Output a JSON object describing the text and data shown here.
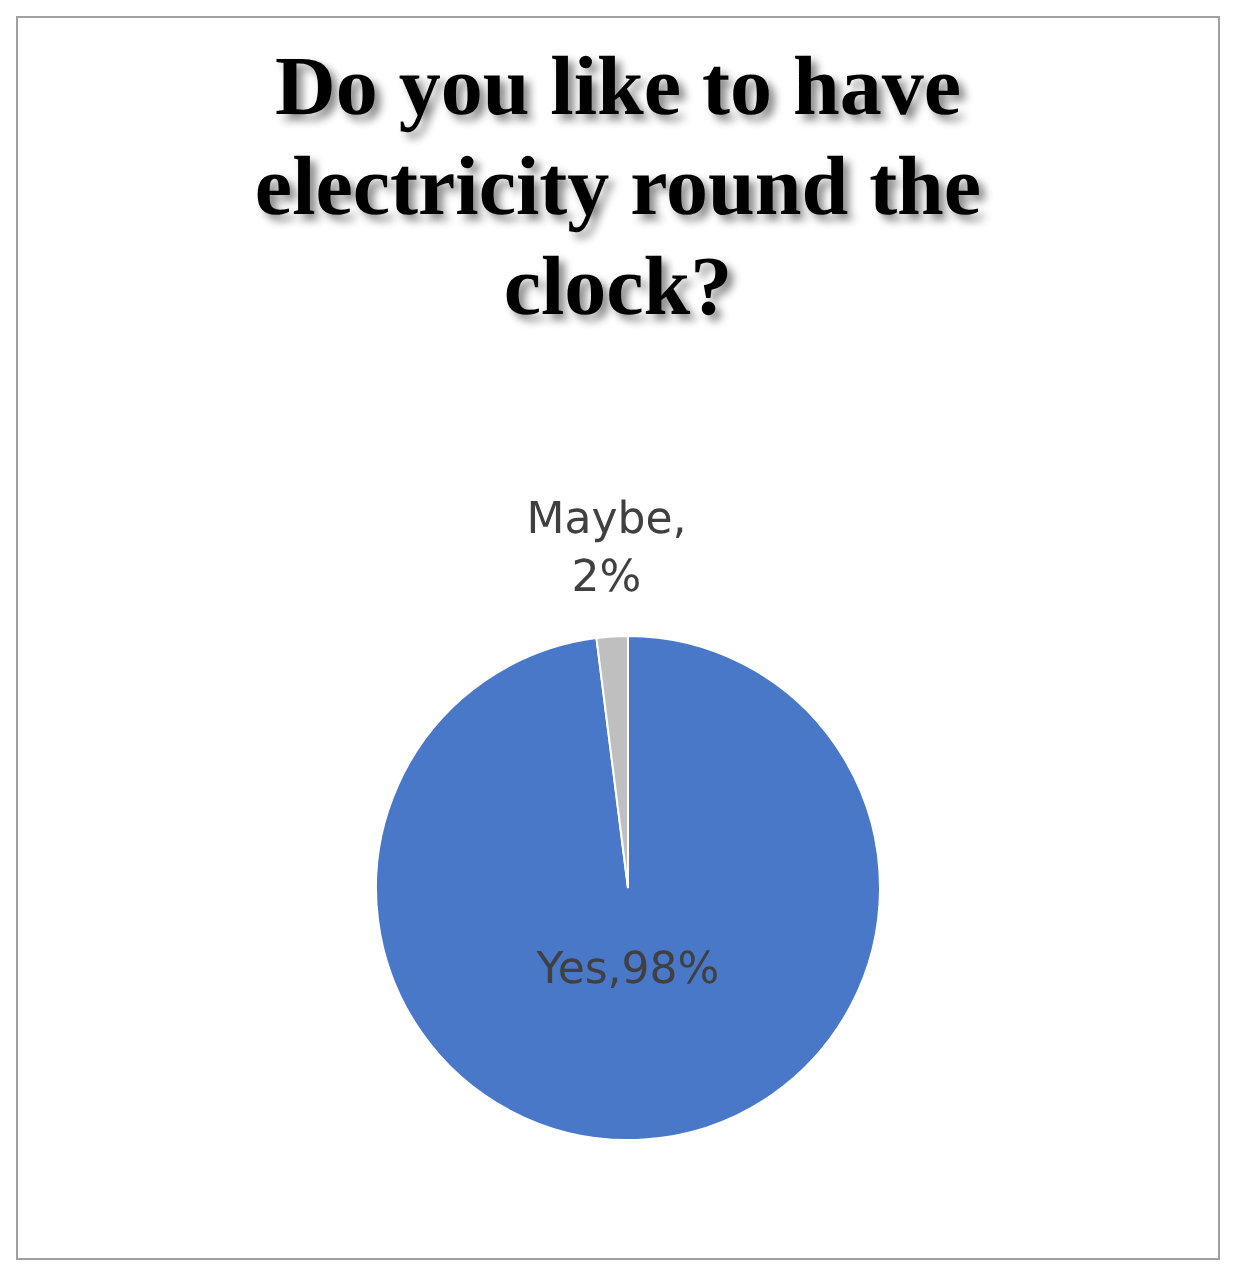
{
  "chart_data": {
    "type": "pie",
    "title": "Do you like to have electricity round the clock?",
    "categories": [
      "Yes",
      "Maybe"
    ],
    "values": [
      98,
      2
    ],
    "colors": [
      "#4a78c8",
      "#bfbfbf"
    ],
    "value_labels": [
      ",98%",
      ", 2%"
    ],
    "legend": false
  }
}
